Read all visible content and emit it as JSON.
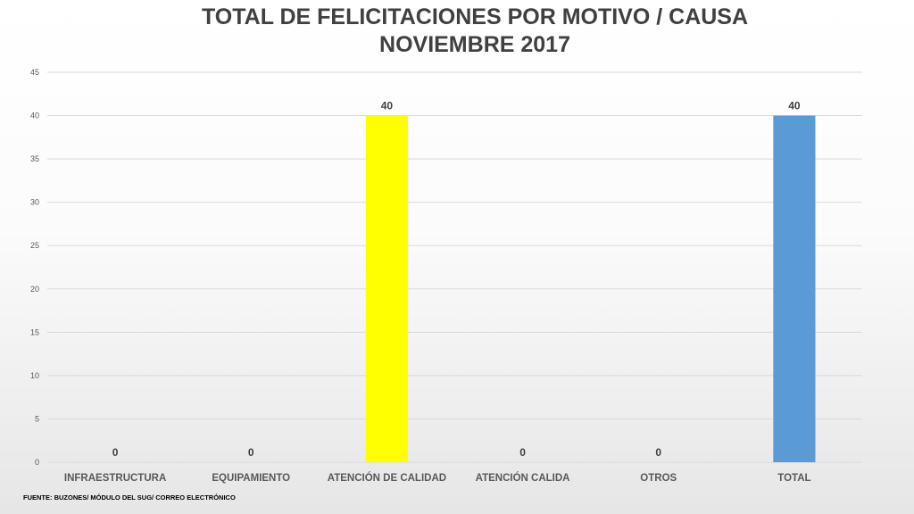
{
  "chart_data": {
    "type": "bar",
    "title": "TOTAL DE FELICITACIONES POR MOTIVO / CAUSA",
    "subtitle": "NOVIEMBRE 2017",
    "xlabel": "",
    "ylabel": "",
    "categories": [
      "INFRAESTRUCTURA",
      "EQUIPAMIENTO",
      "ATENCIÓN DE CALIDAD",
      "ATENCIÓN CALIDA",
      "OTROS",
      "TOTAL"
    ],
    "values": [
      0,
      0,
      40,
      0,
      0,
      40
    ],
    "data_labels": [
      "0",
      "0",
      "40",
      "0",
      "0",
      "40"
    ],
    "bar_colors": [
      "#ffff00",
      "#ffff00",
      "#ffff00",
      "#ffff00",
      "#ffff00",
      "#5b9bd5"
    ],
    "ylim": [
      0,
      45
    ],
    "yticks": [
      0,
      5,
      10,
      15,
      20,
      25,
      30,
      35,
      40,
      45
    ],
    "grid": true,
    "legend": "none"
  },
  "footer": {
    "source": "FUENTE: BUZONES/ MÓDULO DEL SUG/ CORREO ELECTRÓNICO"
  }
}
